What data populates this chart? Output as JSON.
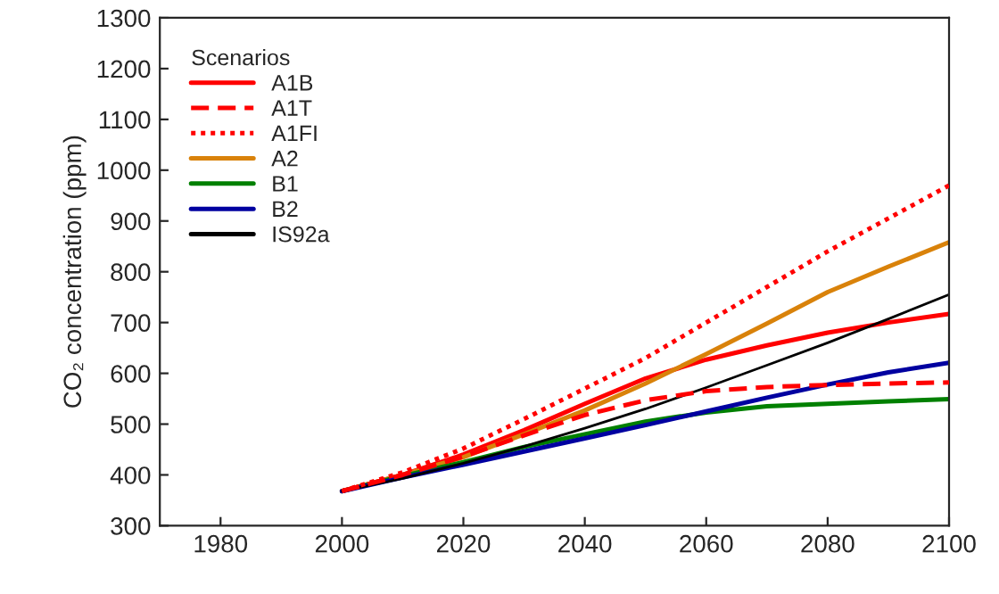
{
  "chart_data": {
    "type": "line",
    "ylabel": "CO₂ concentration (ppm)",
    "legend_title": "Scenarios",
    "legend": "top left",
    "grid": false,
    "xlim": [
      1970,
      2100
    ],
    "xticks": [
      1980,
      2000,
      2020,
      2040,
      2060,
      2080,
      2100
    ],
    "ylim": [
      300,
      1300
    ],
    "yticks": [
      300,
      400,
      500,
      600,
      700,
      800,
      900,
      1000,
      1100,
      1200,
      1300
    ],
    "x": [
      2000,
      2010,
      2020,
      2030,
      2040,
      2050,
      2060,
      2070,
      2080,
      2090,
      2100
    ],
    "series": [
      {
        "name": "A1B",
        "color": "#ff0000",
        "line_style": "solid",
        "values": [
          368,
          400,
          440,
          488,
          540,
          590,
          627,
          655,
          680,
          700,
          717
        ]
      },
      {
        "name": "A1T",
        "color": "#ff0000",
        "line_style": "dashed",
        "values": [
          368,
          400,
          436,
          478,
          518,
          547,
          565,
          573,
          577,
          580,
          582
        ]
      },
      {
        "name": "A1FI",
        "color": "#ff0000",
        "line_style": "dotted",
        "values": [
          368,
          405,
          452,
          510,
          570,
          630,
          700,
          770,
          840,
          905,
          970
        ]
      },
      {
        "name": "A2",
        "color": "#d9820a",
        "line_style": "solid",
        "values": [
          368,
          400,
          435,
          480,
          527,
          580,
          638,
          698,
          760,
          810,
          858
        ]
      },
      {
        "name": "B1",
        "color": "#008000",
        "line_style": "solid",
        "values": [
          368,
          398,
          425,
          455,
          480,
          505,
          523,
          535,
          540,
          545,
          549
        ]
      },
      {
        "name": "B2",
        "color": "#0000a0",
        "line_style": "solid",
        "values": [
          368,
          395,
          420,
          446,
          472,
          498,
          525,
          552,
          578,
          602,
          621
        ]
      },
      {
        "name": "IS92a",
        "color": "#000000",
        "line_style": "solid",
        "values": [
          368,
          393,
          423,
          456,
          492,
          530,
          572,
          616,
          660,
          707,
          755
        ]
      }
    ]
  }
}
